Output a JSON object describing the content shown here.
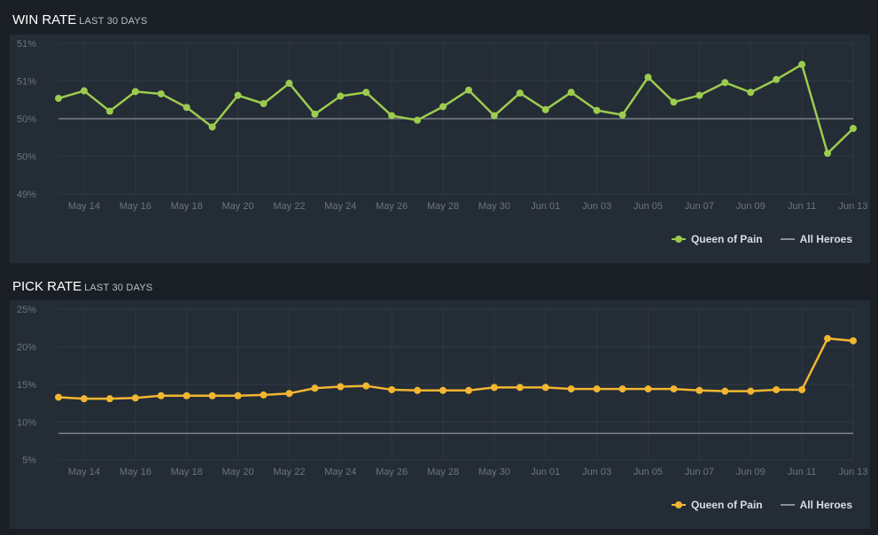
{
  "sections": [
    {
      "title": "WIN RATE",
      "subtitle": "LAST 30 DAYS",
      "legend": {
        "series": "Queen of Pain",
        "baseline": "All Heroes"
      }
    },
    {
      "title": "PICK RATE",
      "subtitle": "LAST 30 DAYS",
      "legend": {
        "series": "Queen of Pain",
        "baseline": "All Heroes"
      }
    }
  ],
  "colors": {
    "win": "#9ccc4e",
    "pick": "#f2b630",
    "baseline": "#8b9096"
  },
  "chart_data": [
    {
      "type": "line",
      "title": "WIN RATE",
      "ylim": [
        49.0,
        51.0
      ],
      "yticks": [
        "49%",
        "50%",
        "50%",
        "51%",
        "51%"
      ],
      "x_tick_labels": [
        "May 14",
        "May 16",
        "May 18",
        "May 20",
        "May 22",
        "May 24",
        "May 26",
        "May 28",
        "May 30",
        "Jun 01",
        "Jun 03",
        "Jun 05",
        "Jun 07",
        "Jun 09",
        "Jun 11",
        "Jun 13"
      ],
      "series": [
        {
          "name": "Queen of Pain",
          "values": [
            50.27,
            50.37,
            50.1,
            50.36,
            50.33,
            50.15,
            49.89,
            50.31,
            50.2,
            50.47,
            50.06,
            50.3,
            50.35,
            50.04,
            49.98,
            50.16,
            50.38,
            50.04,
            50.34,
            50.12,
            50.35,
            50.11,
            50.05,
            50.55,
            50.22,
            50.31,
            50.48,
            50.35,
            50.52,
            50.72,
            49.54,
            49.87
          ]
        },
        {
          "name": "All Heroes",
          "values": [
            50.0
          ]
        }
      ]
    },
    {
      "type": "line",
      "title": "PICK RATE",
      "ylim": [
        5,
        25
      ],
      "yticks": [
        "5%",
        "10%",
        "15%",
        "20%",
        "25%"
      ],
      "x_tick_labels": [
        "May 14",
        "May 16",
        "May 18",
        "May 20",
        "May 22",
        "May 24",
        "May 26",
        "May 28",
        "May 30",
        "Jun 01",
        "Jun 03",
        "Jun 05",
        "Jun 07",
        "Jun 09",
        "Jun 11",
        "Jun 13"
      ],
      "series": [
        {
          "name": "Queen of Pain",
          "values": [
            13.3,
            13.1,
            13.1,
            13.2,
            13.5,
            13.5,
            13.5,
            13.5,
            13.6,
            13.8,
            14.5,
            14.7,
            14.8,
            14.3,
            14.2,
            14.2,
            14.2,
            14.6,
            14.6,
            14.6,
            14.4,
            14.4,
            14.4,
            14.4,
            14.4,
            14.2,
            14.1,
            14.1,
            14.3,
            14.3,
            21.1,
            20.8
          ]
        },
        {
          "name": "All Heroes",
          "values": [
            8.5
          ]
        }
      ]
    }
  ]
}
